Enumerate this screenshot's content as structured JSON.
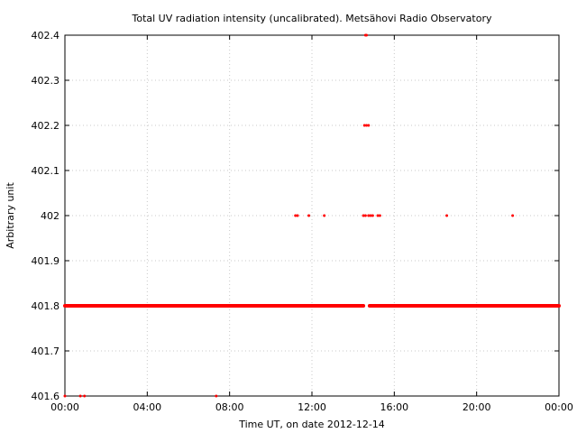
{
  "chart_data": {
    "type": "scatter",
    "title": "Total UV radiation intensity (uncalibrated). Metsähovi Radio Observatory",
    "xlabel": "Time UT, on date 2012-12-14",
    "ylabel": "Arbitrary unit",
    "x_unit": "hours UT",
    "xlim": [
      0,
      24
    ],
    "ylim": [
      401.6,
      402.4
    ],
    "x_ticks": [
      0,
      4,
      8,
      12,
      16,
      20,
      24
    ],
    "x_tick_labels": [
      "00:00",
      "04:00",
      "08:00",
      "12:00",
      "16:00",
      "20:00",
      "00:00"
    ],
    "y_ticks": [
      401.6,
      401.7,
      401.8,
      401.9,
      402.0,
      402.1,
      402.2,
      402.3,
      402.4
    ],
    "y_tick_labels": [
      "401.6",
      "401.7",
      "401.8",
      "401.9",
      "402",
      "402.1",
      "402.2",
      "402.3",
      "402.4"
    ],
    "grid": true,
    "marker_color": "#ff0000",
    "series": [
      {
        "baseline_segments": [
          {
            "x_start": 0.0,
            "x_end": 14.5,
            "y": 401.8
          },
          {
            "x_start": 14.8,
            "x_end": 24.0,
            "y": 401.8
          }
        ],
        "points": [
          {
            "x": 0.0,
            "y": 401.6
          },
          {
            "x": 0.75,
            "y": 401.6
          },
          {
            "x": 0.95,
            "y": 401.6
          },
          {
            "x": 7.35,
            "y": 401.6
          },
          {
            "x": 11.2,
            "y": 402.0
          },
          {
            "x": 11.3,
            "y": 402.0
          },
          {
            "x": 11.85,
            "y": 402.0
          },
          {
            "x": 12.6,
            "y": 402.0
          },
          {
            "x": 14.5,
            "y": 402.0
          },
          {
            "x": 14.6,
            "y": 402.0
          },
          {
            "x": 14.75,
            "y": 402.0
          },
          {
            "x": 14.85,
            "y": 402.0
          },
          {
            "x": 14.95,
            "y": 402.0
          },
          {
            "x": 15.2,
            "y": 402.0
          },
          {
            "x": 15.3,
            "y": 402.0
          },
          {
            "x": 18.55,
            "y": 402.0
          },
          {
            "x": 21.75,
            "y": 402.0
          },
          {
            "x": 14.55,
            "y": 402.2
          },
          {
            "x": 14.65,
            "y": 402.2
          },
          {
            "x": 14.75,
            "y": 402.2
          },
          {
            "x": 14.6,
            "y": 402.4
          },
          {
            "x": 14.65,
            "y": 402.4
          }
        ]
      }
    ]
  }
}
